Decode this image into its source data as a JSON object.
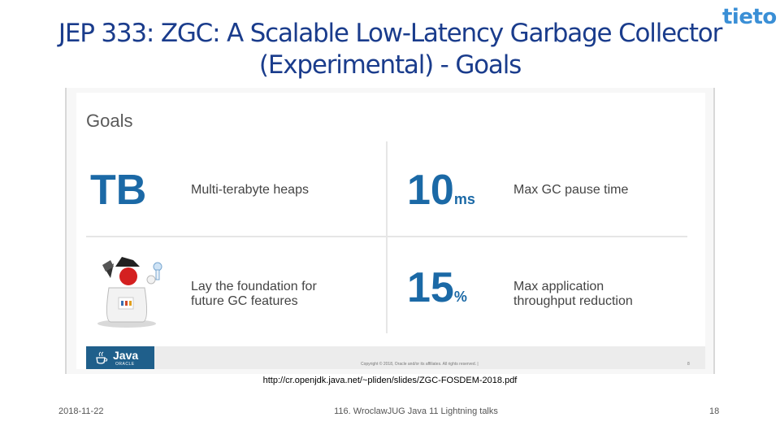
{
  "slide": {
    "title": "JEP 333: ZGC: A Scalable Low-Latency Garbage Collector (Experimental) - Goals",
    "logo_text": "tieto",
    "colors": {
      "title": "#1a3c8c",
      "accent": "#1b69a6",
      "logo": "#3a8fd6"
    },
    "embedded": {
      "heading": "Goals",
      "cells": [
        {
          "big": "TB",
          "unit": "",
          "desc": "Multi-terabyte heaps"
        },
        {
          "big": "10",
          "unit": "ms",
          "desc": "Max GC pause time"
        },
        {
          "big": "",
          "unit": "",
          "desc_lines": [
            "Lay the foundation for",
            "future GC features"
          ],
          "icon": "duke-mascot-icon"
        },
        {
          "big": "15",
          "unit": "%",
          "desc_lines": [
            "Max application",
            "throughput reduction"
          ]
        }
      ],
      "java_logo": "Java",
      "java_sub": "ORACLE",
      "copyright": "Copyright © 2018, Oracle and/or its affiliates. All rights reserved.   |",
      "page": "8"
    },
    "source_url": "http://cr.openjdk.java.net/~pliden/slides/ZGC-FOSDEM-2018.pdf",
    "footer": {
      "date": "2018-11-22",
      "center": "116. WroclawJUG Java 11 Lightning talks",
      "page": "18"
    }
  }
}
